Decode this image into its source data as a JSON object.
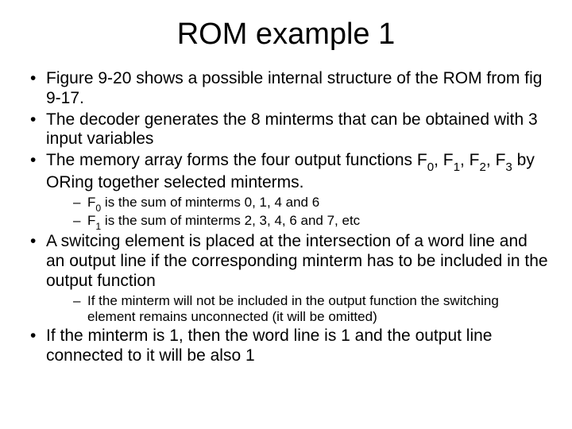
{
  "title": "ROM example 1",
  "bullets": {
    "b1": "Figure 9-20 shows a possible internal structure of the ROM from fig 9-17.",
    "b2": "The decoder generates the 8 minterms that can be obtained with 3 input variables",
    "b3_pre": "The memory array forms the four output functions F",
    "b3_s0": "0",
    "b3_mid1": ", F",
    "b3_s1": "1",
    "b3_mid2": ", F",
    "b3_s2": "2",
    "b3_mid3": ", F",
    "b3_s3": "3",
    "b3_post": " by ORing together selected minterms.",
    "b3a_pre": "F",
    "b3a_s": "0",
    "b3a_post": " is the sum of minterms 0, 1, 4 and 6",
    "b3b_pre": "F",
    "b3b_s": "1",
    "b3b_post": " is the sum of minterms 2, 3, 4, 6 and 7, etc",
    "b4": "A switcing element is placed at the intersection of a word line and an output line if the corresponding minterm has to be included in the output function",
    "b4a": "If the minterm will not be included in the output function the switching element remains unconnected (it will be omitted)",
    "b5": "If the minterm is 1, then the word line is 1 and the output line connected to it will be also 1"
  },
  "style": {
    "background": "#ffffff",
    "text_color": "#000000",
    "title_fontsize": 38,
    "body_fontsize": 21,
    "sub_fontsize": 17,
    "font_family": "Arial"
  }
}
